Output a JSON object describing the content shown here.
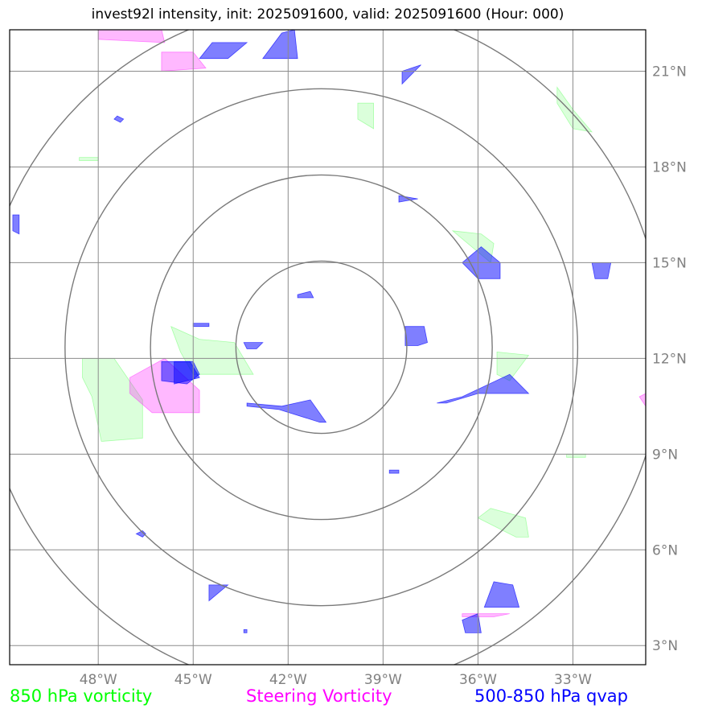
{
  "header": {
    "title": "invest92l intensity, init: 2025091600, valid: 2025091600 (Hour: 000)"
  },
  "colors": {
    "vorticity_850": "#00ff00",
    "steering_vorticity": "#ff00ff",
    "qvap_500_850": "#0000ff",
    "grid": "#8c8c8c",
    "ring": "#7a7a7a"
  },
  "chart_data": {
    "type": "map",
    "projection": "lat-lon",
    "xlim": [
      -50.8,
      -30.7
    ],
    "ylim": [
      2.4,
      22.3
    ],
    "grid": true,
    "lon_ticks": [
      -48,
      -45,
      -42,
      -39,
      -36,
      -33
    ],
    "lon_tick_labels": [
      "48°W",
      "45°W",
      "42°W",
      "39°W",
      "36°W",
      "33°W"
    ],
    "lat_ticks": [
      3,
      6,
      9,
      12,
      15,
      18,
      21
    ],
    "lat_tick_labels": [
      "3°N",
      "6°N",
      "9°N",
      "12°N",
      "15°N",
      "18°N",
      "21°N"
    ],
    "range_rings": {
      "center": [
        -40.95,
        12.35
      ],
      "radii_deg": [
        2.7,
        5.4,
        8.1,
        10.8
      ]
    },
    "legend": [
      {
        "name": "850 hPa vorticity",
        "color": "#00ff00"
      },
      {
        "name": "Steering Vorticity",
        "color": "#ff00ff"
      },
      {
        "name": "500-850 hPa qvap",
        "color": "#0000ff"
      }
    ],
    "layers": [
      {
        "field": "850 hPa vorticity",
        "color": "#00ff00",
        "opacity": 0.14,
        "polygons": [
          [
            [
              -48.5,
              12
            ],
            [
              -47.5,
              12
            ],
            [
              -46.6,
              10.7
            ],
            [
              -46.6,
              9.5
            ],
            [
              -47.9,
              9.4
            ],
            [
              -48.2,
              10.8
            ],
            [
              -48.5,
              11.4
            ]
          ],
          [
            [
              -45.7,
              13.0
            ],
            [
              -44.8,
              12.6
            ],
            [
              -43.7,
              12.5
            ],
            [
              -43.1,
              11.5
            ],
            [
              -45,
              11.5
            ],
            [
              -45.4,
              12.2
            ]
          ],
          [
            [
              -39.8,
              20.0
            ],
            [
              -39.3,
              20.0
            ],
            [
              -39.3,
              19.2
            ],
            [
              -39.8,
              19.5
            ]
          ],
          [
            [
              -33.5,
              20.0
            ],
            [
              -33.0,
              19.2
            ],
            [
              -32.4,
              19.1
            ],
            [
              -33.0,
              19.8
            ],
            [
              -33.5,
              20.5
            ]
          ],
          [
            [
              -35.9,
              15.9
            ],
            [
              -35.5,
              15.6
            ],
            [
              -35.6,
              15.0
            ],
            [
              -36.8,
              16.0
            ]
          ],
          [
            [
              -35.4,
              12.2
            ],
            [
              -34.4,
              12.1
            ],
            [
              -35.0,
              11.3
            ],
            [
              -35.4,
              11.5
            ]
          ],
          [
            [
              -36.0,
              7.0
            ],
            [
              -34.8,
              6.4
            ],
            [
              -34.4,
              6.4
            ],
            [
              -34.5,
              7.0
            ],
            [
              -35.6,
              7.3
            ]
          ],
          [
            [
              -48.6,
              18.3
            ],
            [
              -48.0,
              18.3
            ],
            [
              -48.0,
              18.2
            ],
            [
              -48.6,
              18.2
            ]
          ],
          [
            [
              -33.2,
              9.0
            ],
            [
              -32.6,
              9.0
            ],
            [
              -32.6,
              8.9
            ],
            [
              -33.2,
              8.9
            ]
          ]
        ]
      },
      {
        "field": "Steering Vorticity",
        "color": "#ff00ff",
        "opacity": 0.28,
        "polygons": [
          [
            [
              -47,
              10.9
            ],
            [
              -46.3,
              10.3
            ],
            [
              -44.8,
              10.3
            ],
            [
              -44.8,
              11.0
            ],
            [
              -45.9,
              12.0
            ],
            [
              -47,
              11.4
            ]
          ],
          [
            [
              -46.0,
              21.6
            ],
            [
              -45.0,
              21.6
            ],
            [
              -44.6,
              21.1
            ],
            [
              -46.0,
              21.0
            ]
          ],
          [
            [
              -48.0,
              22.3
            ],
            [
              -46.0,
              22.3
            ],
            [
              -45.9,
              21.9
            ],
            [
              -48.0,
              22.0
            ]
          ],
          [
            [
              -36.5,
              4.0
            ],
            [
              -35.0,
              4.0
            ],
            [
              -35.5,
              3.9
            ],
            [
              -36.5,
              3.9
            ]
          ],
          [
            [
              -30.9,
              10.8
            ],
            [
              -30.7,
              10.5
            ],
            [
              -30.7,
              10.9
            ]
          ]
        ]
      },
      {
        "field": "500-850 hPa qvap",
        "color": "#0000ff",
        "opacity": 0.5,
        "polygons": [
          [
            [
              -46.0,
              11.9
            ],
            [
              -45.0,
              11.9
            ],
            [
              -44.8,
              11.5
            ],
            [
              -45.2,
              11.2
            ],
            [
              -46.0,
              11.3
            ]
          ],
          [
            [
              -45.6,
              11.9
            ],
            [
              -45.1,
              11.9
            ],
            [
              -44.8,
              11.4
            ],
            [
              -45.6,
              11.2
            ]
          ],
          [
            [
              -43.3,
              10.6
            ],
            [
              -42.2,
              10.5
            ],
            [
              -41.3,
              10.7
            ],
            [
              -40.8,
              10.0
            ],
            [
              -41.0,
              10.0
            ],
            [
              -42.3,
              10.4
            ],
            [
              -43.3,
              10.5
            ]
          ],
          [
            [
              -37.3,
              10.6
            ],
            [
              -36.5,
              10.8
            ],
            [
              -35.0,
              11.5
            ],
            [
              -34.4,
              10.9
            ],
            [
              -35.0,
              10.9
            ],
            [
              -36.0,
              10.9
            ],
            [
              -37.0,
              10.6
            ]
          ],
          [
            [
              -38.3,
              13.0
            ],
            [
              -37.7,
              13.0
            ],
            [
              -37.6,
              12.5
            ],
            [
              -37.9,
              12.4
            ],
            [
              -38.3,
              12.4
            ]
          ],
          [
            [
              -36.5,
              15.0
            ],
            [
              -35.9,
              15.5
            ],
            [
              -35.3,
              15.0
            ],
            [
              -35.3,
              14.5
            ],
            [
              -36.0,
              14.5
            ]
          ],
          [
            [
              -32.4,
              15.0
            ],
            [
              -31.8,
              15.0
            ],
            [
              -31.9,
              14.5
            ],
            [
              -32.3,
              14.5
            ]
          ],
          [
            [
              -42.2,
              22.2
            ],
            [
              -41.8,
              22.3
            ],
            [
              -41.7,
              21.4
            ],
            [
              -42.8,
              21.4
            ]
          ],
          [
            [
              -44.4,
              21.9
            ],
            [
              -43.3,
              21.9
            ],
            [
              -43.9,
              21.4
            ],
            [
              -44.8,
              21.4
            ]
          ],
          [
            [
              -38.4,
              21.0
            ],
            [
              -37.8,
              21.2
            ],
            [
              -38.4,
              20.6
            ]
          ],
          [
            [
              -44.5,
              4.9
            ],
            [
              -43.9,
              4.9
            ],
            [
              -44.5,
              4.4
            ]
          ],
          [
            [
              -35.5,
              5.0
            ],
            [
              -34.9,
              4.9
            ],
            [
              -34.7,
              4.2
            ],
            [
              -35.8,
              4.2
            ]
          ],
          [
            [
              -36.5,
              3.8
            ],
            [
              -36.0,
              4.0
            ],
            [
              -35.9,
              3.4
            ],
            [
              -36.4,
              3.4
            ]
          ],
          [
            [
              -45.0,
              13.1
            ],
            [
              -44.5,
              13.1
            ],
            [
              -44.5,
              13.0
            ],
            [
              -45.0,
              13.0
            ]
          ],
          [
            [
              -43.4,
              12.5
            ],
            [
              -42.8,
              12.5
            ],
            [
              -43.0,
              12.3
            ],
            [
              -43.3,
              12.3
            ]
          ],
          [
            [
              -41.7,
              14.0
            ],
            [
              -41.3,
              14.1
            ],
            [
              -41.2,
              13.9
            ],
            [
              -41.7,
              13.9
            ]
          ],
          [
            [
              -38.5,
              17.1
            ],
            [
              -37.9,
              17.0
            ],
            [
              -38.5,
              16.9
            ]
          ],
          [
            [
              -50.7,
              16.5
            ],
            [
              -50.5,
              16.5
            ],
            [
              -50.5,
              15.9
            ],
            [
              -50.7,
              16.0
            ]
          ],
          [
            [
              -47.4,
              19.6
            ],
            [
              -47.2,
              19.5
            ],
            [
              -47.3,
              19.4
            ],
            [
              -47.5,
              19.5
            ]
          ],
          [
            [
              -46.6,
              6.6
            ],
            [
              -46.5,
              6.5
            ],
            [
              -46.6,
              6.4
            ],
            [
              -46.8,
              6.5
            ]
          ],
          [
            [
              -38.8,
              8.5
            ],
            [
              -38.5,
              8.5
            ],
            [
              -38.5,
              8.4
            ],
            [
              -38.8,
              8.4
            ]
          ],
          [
            [
              -43.4,
              3.5
            ],
            [
              -43.3,
              3.5
            ],
            [
              -43.3,
              3.4
            ],
            [
              -43.4,
              3.4
            ]
          ]
        ]
      }
    ]
  }
}
